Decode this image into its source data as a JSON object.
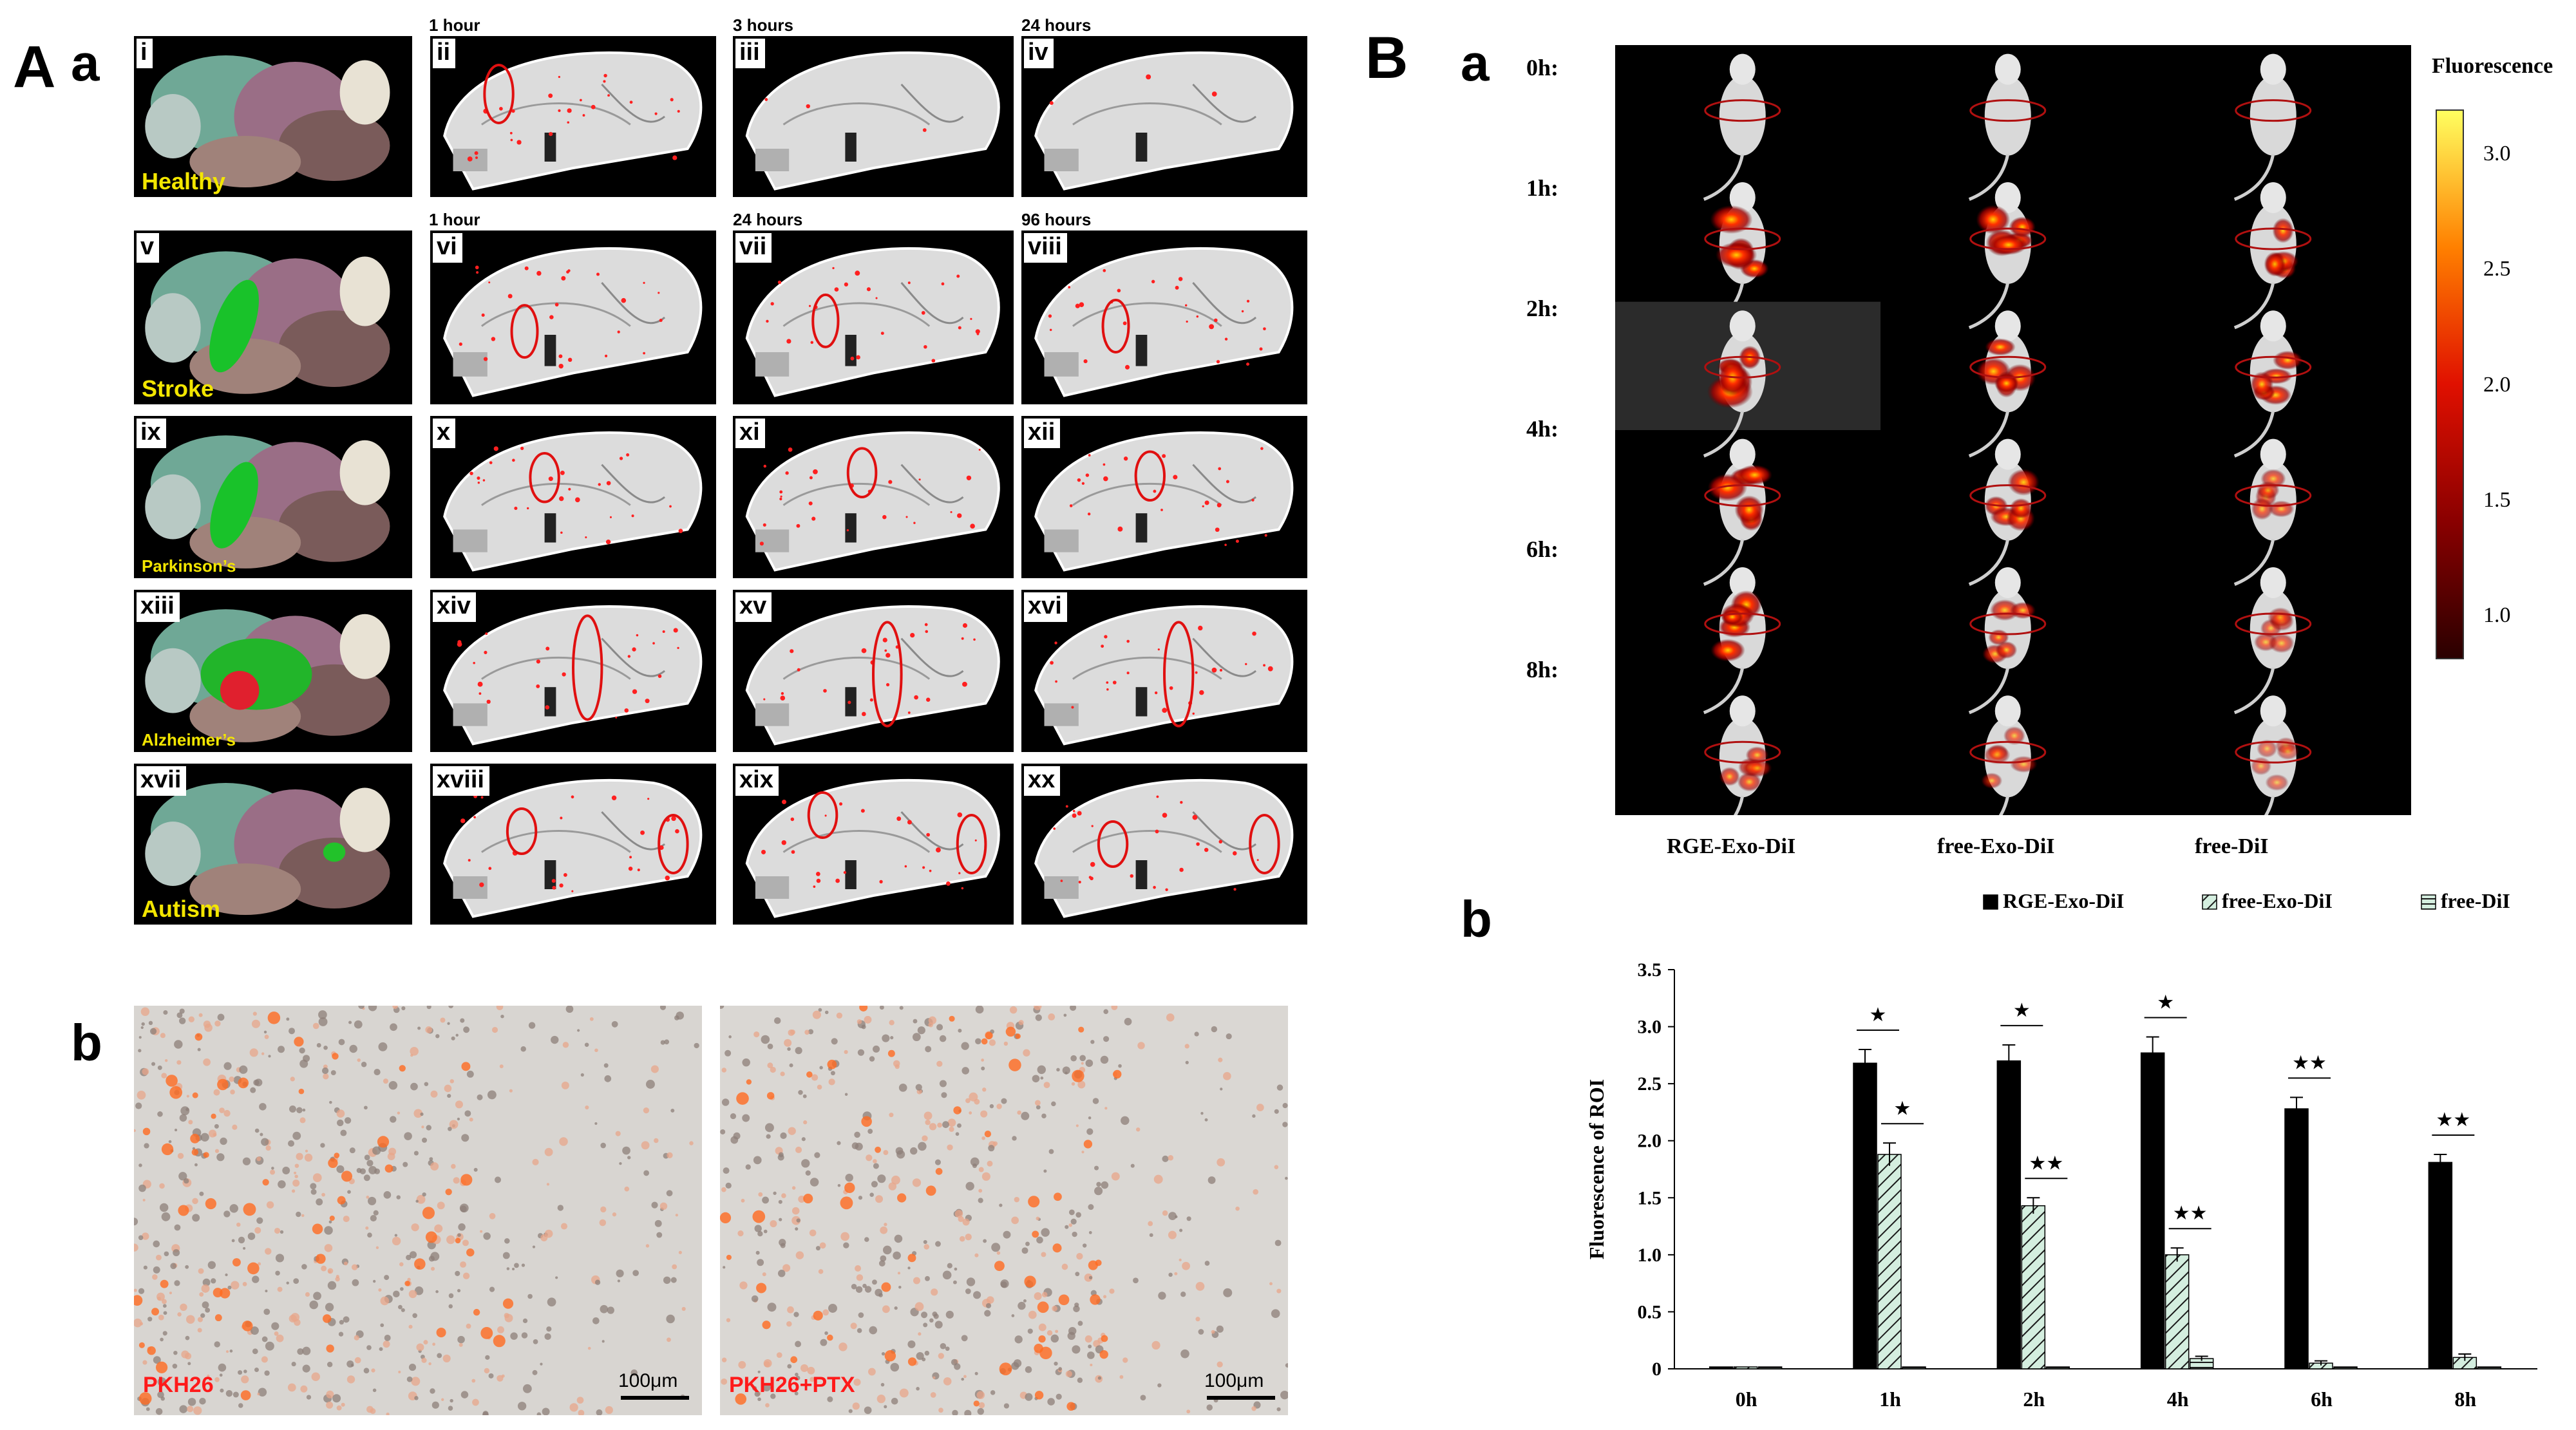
{
  "panel_A": {
    "label": "A",
    "sub_a": "a",
    "sub_b": "b",
    "time_headers_row1": [
      "1 hour",
      "3 hours",
      "24 hours"
    ],
    "time_headers_row2": [
      "1 hour",
      "24 hours",
      "96 hours"
    ],
    "rows": [
      {
        "brain_numeral": "i",
        "condition": "Healthy",
        "condition_size": "big",
        "scans": [
          "ii",
          "iii",
          "iv"
        ],
        "highlight": "none"
      },
      {
        "brain_numeral": "v",
        "condition": "Stroke",
        "condition_size": "big",
        "scans": [
          "vi",
          "vii",
          "viii"
        ],
        "highlight": "green"
      },
      {
        "brain_numeral": "ix",
        "condition": "Parkinson’s",
        "condition_size": "small",
        "scans": [
          "x",
          "xi",
          "xii"
        ],
        "highlight": "green"
      },
      {
        "brain_numeral": "xiii",
        "condition": "Alzheimer’s",
        "condition_size": "small",
        "scans": [
          "xiv",
          "xv",
          "xvi"
        ],
        "highlight": "green-red"
      },
      {
        "brain_numeral": "xvii",
        "condition": "Autism",
        "condition_size": "big",
        "scans": [
          "xviii",
          "xix",
          "xx"
        ],
        "highlight": "green-small"
      }
    ],
    "micrographs": [
      {
        "label": "PKH26",
        "scale": "100μm"
      },
      {
        "label": "PKH26+PTX",
        "scale": "100μm"
      }
    ]
  },
  "panel_B": {
    "label": "B",
    "sub_a": "a",
    "sub_b": "b",
    "row_times": [
      "0h:",
      "1h:",
      "2h:",
      "4h:",
      "6h:",
      "8h:"
    ],
    "columns": [
      "RGE-Exo-DiI",
      "free-Exo-DiI",
      "free-DiI"
    ],
    "colorbar": {
      "title": "Fluorescence",
      "ticks": [
        "3.0",
        "2.5",
        "2.0",
        "1.5",
        "1.0"
      ]
    }
  },
  "chart_data": {
    "type": "bar",
    "categories": [
      "0h",
      "1h",
      "2h",
      "4h",
      "6h",
      "8h"
    ],
    "series": [
      {
        "name": "RGE-Exo-DiI",
        "values": [
          0.0,
          2.68,
          2.7,
          2.77,
          2.28,
          1.81
        ],
        "errors": [
          0,
          0.12,
          0.14,
          0.14,
          0.1,
          0.07
        ],
        "color": "#000000"
      },
      {
        "name": "free-Exo-DiI",
        "values": [
          0.0,
          1.88,
          1.43,
          1.0,
          0.05,
          0.1
        ],
        "errors": [
          0,
          0.1,
          0.07,
          0.06,
          0.02,
          0.03
        ],
        "color": "#cfe9da"
      },
      {
        "name": "free-DiI",
        "values": [
          0.0,
          0.0,
          0.0,
          0.09,
          0.0,
          0.0
        ],
        "errors": [
          0,
          0,
          0,
          0.02,
          0,
          0
        ],
        "color": "#cfe9da"
      }
    ],
    "ylabel": "Fluorescence of ROI",
    "ylim": [
      0,
      3.5
    ],
    "yticks": [
      "0",
      "0.5",
      "1.0",
      "1.5",
      "2.0",
      "2.5",
      "3.0",
      "3.5"
    ],
    "annotations": [
      {
        "category": "1h",
        "pair": "RGE-Exo-DiI:free-Exo-DiI",
        "text": "★"
      },
      {
        "category": "1h",
        "pair": "free-Exo-DiI:free-DiI",
        "text": "★"
      },
      {
        "category": "2h",
        "pair": "RGE-Exo-DiI:free-Exo-DiI",
        "text": "★"
      },
      {
        "category": "2h",
        "pair": "free-Exo-DiI:free-DiI",
        "text": "★★"
      },
      {
        "category": "4h",
        "pair": "RGE-Exo-DiI:free-Exo-DiI",
        "text": "★"
      },
      {
        "category": "4h",
        "pair": "free-Exo-DiI:free-DiI",
        "text": "★★"
      },
      {
        "category": "6h",
        "pair": "RGE-Exo-DiI:free-Exo-DiI",
        "text": "★★"
      },
      {
        "category": "8h",
        "pair": "RGE-Exo-DiI:free-Exo-DiI",
        "text": "★★"
      }
    ],
    "legend_placement": "top",
    "grid": false
  }
}
